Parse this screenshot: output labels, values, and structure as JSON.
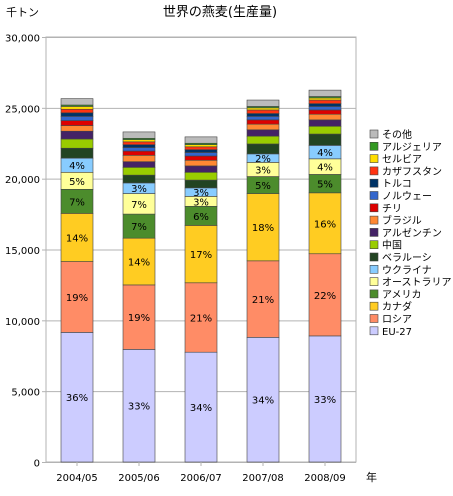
{
  "chart_data": {
    "type": "bar",
    "stacked": true,
    "title": "世界の燕麦(生産量)",
    "ylabel": "千トン",
    "xlabel": "年",
    "ylim": [
      0,
      30000
    ],
    "yticks": [
      "0",
      "5,000",
      "10,000",
      "15,000",
      "20,000",
      "25,000",
      "30,000"
    ],
    "grid": "horizontal",
    "legend_position": "right",
    "categories": [
      "2004/05",
      "2005/06",
      "2006/07",
      "2007/08",
      "2008/09"
    ],
    "series": [
      {
        "name": "EU-27",
        "color": "#ccccff",
        "values": [
          9150,
          7950,
          7750,
          8800,
          8900
        ],
        "labels": [
          "36%",
          "33%",
          "34%",
          "34%",
          "33%"
        ]
      },
      {
        "name": "ロシア",
        "color": "#ff8c66",
        "values": [
          5000,
          4550,
          4900,
          5400,
          5800
        ],
        "labels": [
          "19%",
          "19%",
          "21%",
          "21%",
          "22%"
        ]
      },
      {
        "name": "カナダ",
        "color": "#ffcc22",
        "values": [
          3400,
          3300,
          4050,
          4750,
          4300
        ],
        "labels": [
          "14%",
          "14%",
          "17%",
          "18%",
          "16%"
        ]
      },
      {
        "name": "アメリカ",
        "color": "#4c8c2c",
        "values": [
          1700,
          1700,
          1350,
          1200,
          1300
        ],
        "labels": [
          "7%",
          "7%",
          "6%",
          "5%",
          "5%"
        ]
      },
      {
        "name": "オーストラリア",
        "color": "#ffff99",
        "values": [
          1200,
          1450,
          700,
          1000,
          1100
        ],
        "labels": [
          "5%",
          "7%",
          "3%",
          "3%",
          "4%"
        ]
      },
      {
        "name": "ウクライナ",
        "color": "#88ccff",
        "values": [
          1000,
          750,
          600,
          600,
          950
        ],
        "labels": [
          "4%",
          "3%",
          "3%",
          "2%",
          "4%"
        ]
      },
      {
        "name": "ベラルーシ",
        "color": "#224422",
        "values": [
          700,
          550,
          550,
          700,
          800
        ],
        "labels": [
          "",
          "",
          "",
          "",
          ""
        ]
      },
      {
        "name": "中国",
        "color": "#99cc00",
        "values": [
          650,
          550,
          550,
          550,
          550
        ],
        "labels": [
          "",
          "",
          "",
          "",
          ""
        ]
      },
      {
        "name": "アルゼンチン",
        "color": "#442266",
        "values": [
          550,
          400,
          450,
          450,
          450
        ],
        "labels": [
          "",
          "",
          "",
          "",
          ""
        ]
      },
      {
        "name": "ブラジル",
        "color": "#ff8833",
        "values": [
          400,
          450,
          400,
          400,
          400
        ],
        "labels": [
          "",
          "",
          "",
          "",
          ""
        ]
      },
      {
        "name": "チリ",
        "color": "#dd0000",
        "values": [
          350,
          300,
          300,
          300,
          300
        ],
        "labels": [
          "",
          "",
          "",
          "",
          ""
        ]
      },
      {
        "name": "ノルウェー",
        "color": "#3366cc",
        "values": [
          300,
          250,
          250,
          250,
          250
        ],
        "labels": [
          "",
          "",
          "",
          "",
          ""
        ]
      },
      {
        "name": "トルコ",
        "color": "#003366",
        "values": [
          250,
          200,
          200,
          200,
          200
        ],
        "labels": [
          "",
          "",
          "",
          "",
          ""
        ]
      },
      {
        "name": "カザフスタン",
        "color": "#ff3311",
        "values": [
          250,
          200,
          200,
          250,
          250
        ],
        "labels": [
          "",
          "",
          "",
          "",
          ""
        ]
      },
      {
        "name": "セルビア",
        "color": "#ffdd00",
        "values": [
          200,
          150,
          150,
          150,
          150
        ],
        "labels": [
          "",
          "",
          "",
          "",
          ""
        ]
      },
      {
        "name": "アルジェリア",
        "color": "#339922",
        "values": [
          100,
          100,
          100,
          100,
          100
        ],
        "labels": [
          "",
          "",
          "",
          "",
          ""
        ]
      },
      {
        "name": "その他",
        "color": "#bbbbbb",
        "values": [
          450,
          450,
          450,
          450,
          450
        ],
        "labels": [
          "",
          "",
          "",
          "",
          ""
        ]
      }
    ]
  }
}
